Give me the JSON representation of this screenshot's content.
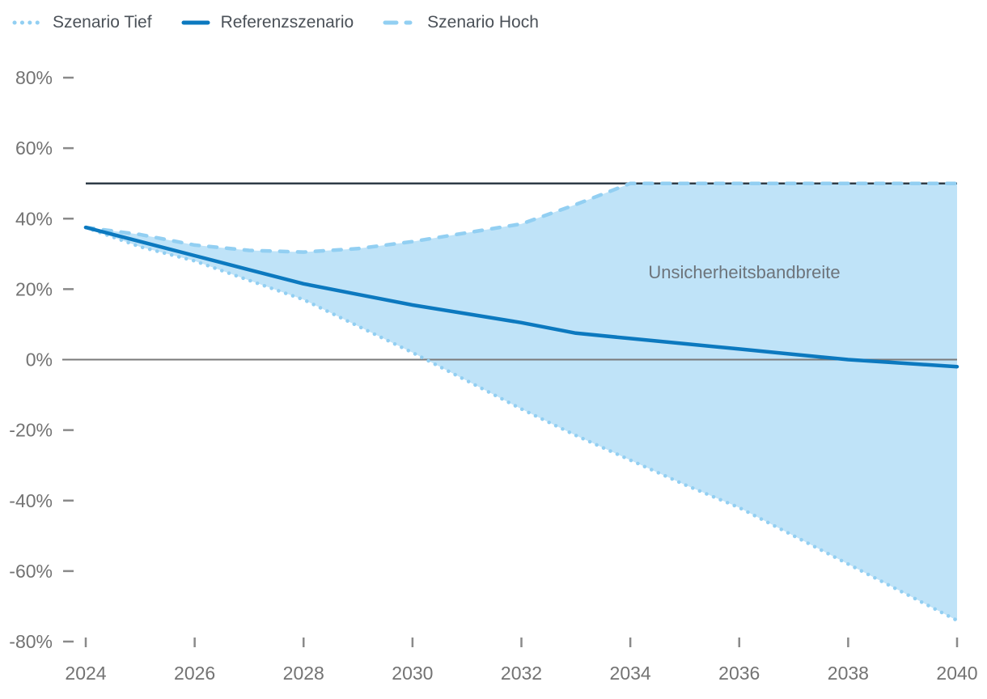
{
  "legend": {
    "items": [
      {
        "label": "Szenario Tief",
        "swatch": "dotted-light-blue"
      },
      {
        "label": "Referenzszenario",
        "swatch": "solid-blue"
      },
      {
        "label": "Szenario Hoch",
        "swatch": "dashed-light-blue"
      }
    ]
  },
  "chart_data": {
    "type": "line",
    "title": "",
    "xlabel": "",
    "ylabel": "",
    "x": [
      2024,
      2025,
      2026,
      2027,
      2028,
      2029,
      2030,
      2031,
      2032,
      2033,
      2034,
      2035,
      2036,
      2037,
      2038,
      2039,
      2040
    ],
    "xlim": [
      2024,
      2040
    ],
    "x_ticks": [
      2024,
      2026,
      2028,
      2030,
      2032,
      2034,
      2036,
      2038,
      2040
    ],
    "y_ticks": [
      80,
      60,
      40,
      20,
      0,
      -20,
      -40,
      -60,
      -80
    ],
    "ylim": [
      -80,
      80
    ],
    "y_tick_suffix": "%",
    "grid": false,
    "legend_position": "top-left",
    "series": [
      {
        "name": "Szenario Tief",
        "style": "dotted",
        "color": "#92cff2",
        "values": [
          37.5,
          32,
          28,
          22.5,
          17,
          9.5,
          2,
          -6,
          -14,
          -21.5,
          -28.5,
          -35.5,
          -42,
          -50,
          -58,
          -66,
          -74
        ]
      },
      {
        "name": "Referenzszenario",
        "style": "solid",
        "color": "#0c79bf",
        "values": [
          37.5,
          33.5,
          29.5,
          25.5,
          21.5,
          18.5,
          15.5,
          13,
          10.5,
          7.5,
          6,
          4.5,
          3,
          1.5,
          0,
          -1,
          -2
        ]
      },
      {
        "name": "Szenario Hoch",
        "style": "dashed",
        "color": "#92cff2",
        "values": [
          37.5,
          35.5,
          32.5,
          31,
          30.5,
          31.5,
          33.5,
          36,
          38.5,
          44,
          50,
          50,
          50,
          50,
          50,
          50,
          50
        ]
      }
    ],
    "band": {
      "label": "Unsicherheitsbandbreite",
      "upper_series": "Szenario Hoch",
      "lower_series": "Szenario Tief",
      "fill": "#bfe3f8"
    },
    "reference_line": {
      "y": 50,
      "color": "#2f3c47"
    },
    "zero_line": {
      "y": 0,
      "color": "#7a7a7a"
    },
    "colors": {
      "axis_text": "#737373",
      "tick_mark": "#8a8a8a",
      "legend_text": "#4b5158",
      "band_label_text": "#6d747b"
    }
  }
}
